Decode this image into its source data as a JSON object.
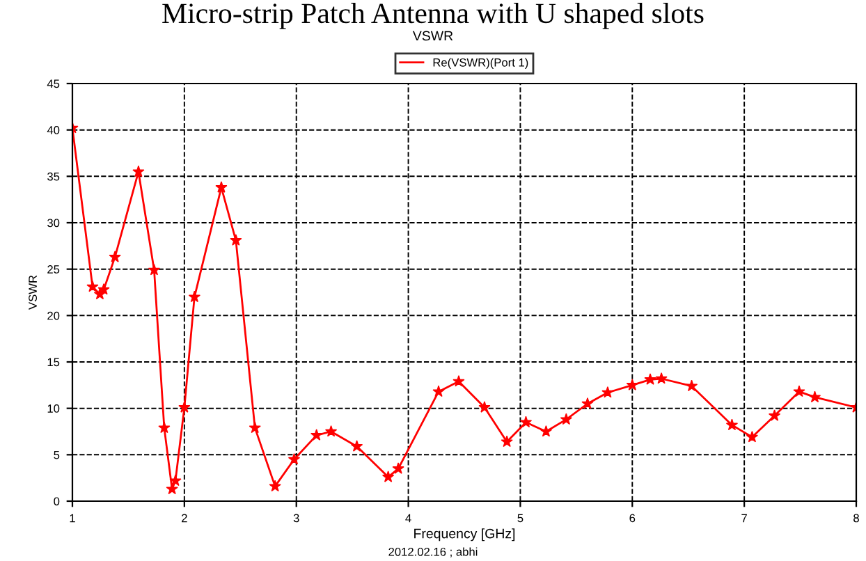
{
  "chart_data": {
    "type": "line",
    "title": "Micro-strip Patch Antenna with U shaped slots",
    "subtitle": "VSWR",
    "xlabel": "Frequency [GHz]",
    "ylabel": "VSWR",
    "annotations": [
      "2012.02.16 ; abhi"
    ],
    "series": [
      {
        "name": "Re(VSWR)(Port 1)",
        "color": "#ff0000",
        "x": [
          1.0,
          1.18,
          1.245,
          1.28,
          1.38,
          1.59,
          1.73,
          1.82,
          1.89,
          1.92,
          2.0,
          2.09,
          2.33,
          2.46,
          2.63,
          2.81,
          2.98,
          3.18,
          3.31,
          3.54,
          3.82,
          3.91,
          4.27,
          4.45,
          4.68,
          4.88,
          5.05,
          5.23,
          5.41,
          5.6,
          5.78,
          6.0,
          6.16,
          6.26,
          6.53,
          6.89,
          7.07,
          7.27,
          7.49,
          7.63,
          8.0
        ],
        "values": [
          40.2,
          23.1,
          22.3,
          22.8,
          26.3,
          35.5,
          24.9,
          7.9,
          1.3,
          2.2,
          10.1,
          22.0,
          33.8,
          28.1,
          7.9,
          1.6,
          4.5,
          7.1,
          7.5,
          5.9,
          2.6,
          3.5,
          11.8,
          12.9,
          10.1,
          6.4,
          8.5,
          7.5,
          8.8,
          10.5,
          11.7,
          12.5,
          13.1,
          13.2,
          12.4,
          8.2,
          6.9,
          9.2,
          11.8,
          11.2,
          10.1
        ]
      }
    ],
    "xlim": [
      1,
      8
    ],
    "xticks": [
      1,
      2,
      3,
      4,
      5,
      6,
      7,
      8
    ],
    "ylim": [
      0,
      45
    ],
    "yticks": [
      0,
      5,
      10,
      15,
      20,
      25,
      30,
      35,
      40,
      45
    ],
    "grid": true,
    "legend": "top",
    "marker": "star",
    "line_style": "solid"
  }
}
